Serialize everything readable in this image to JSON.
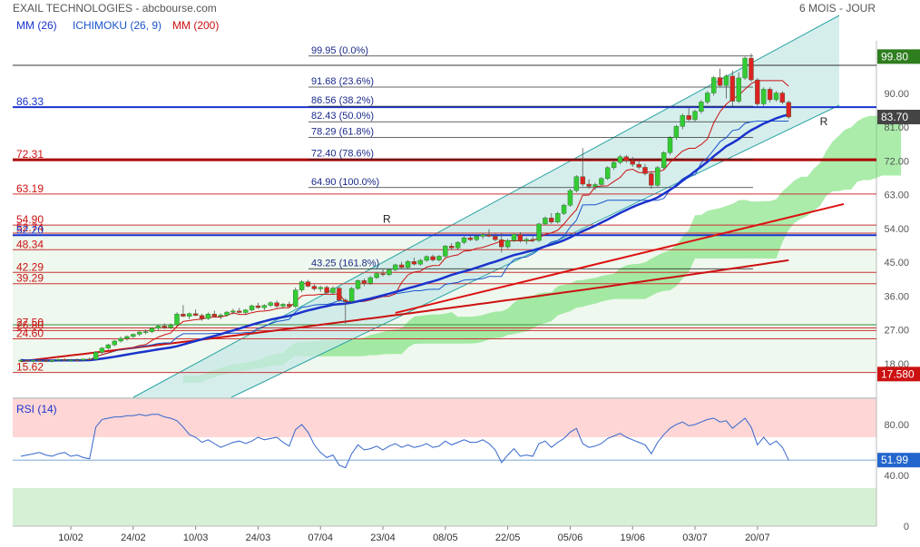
{
  "header": {
    "title": "EXAIL TECHNOLOGIES - abcbourse.com",
    "period": "6 MOIS - JOUR"
  },
  "legend": {
    "mm26": "MM (26)",
    "ichimoku": "ICHIMOKU (26, 9)",
    "mm200": "MM (200)",
    "rsi": "RSI (14)"
  },
  "colors": {
    "candle_up": "#33cc33",
    "candle_down": "#dd2222",
    "mm26": "#1a33cc",
    "mm200": "#cc1111",
    "tenkan": "#cc1111",
    "kijun": "#1a55cc",
    "cloud": "#66dd66",
    "channel": "#2aa3a3",
    "channel_fill": "#c7e8e6",
    "fibo_text": "#1a2a8a",
    "support_text": "#cc1111",
    "rsi_line": "#3366cc",
    "rsi_high": "#ffd6d6",
    "rsi_low": "#d6f0d6",
    "price_badge": "#2e7d1e",
    "last_badge": "#444444",
    "low_badge": "#cc1111",
    "rsi_badge": "#2266cc"
  },
  "chart_data": {
    "type": "candlestick",
    "price_axis": {
      "ylim": [
        9,
        104
      ],
      "ticks": [
        90.0,
        81.0,
        72.0,
        63.0,
        54.0,
        45.0,
        36.0,
        27.0,
        18.0
      ],
      "tick_labels": [
        "90.00",
        "81.00",
        "72.00",
        "63.00",
        "54.00",
        "45.00",
        "36.00",
        "27.00",
        "18.00"
      ]
    },
    "x_axis": {
      "tick_labels": [
        "10/02",
        "24/02",
        "10/03",
        "24/03",
        "07/04",
        "23/04",
        "08/05",
        "22/05",
        "05/06",
        "19/06",
        "03/07",
        "20/07"
      ],
      "tick_index": [
        8,
        18,
        28,
        38,
        48,
        58,
        68,
        78,
        88,
        98,
        108,
        118
      ]
    },
    "badges": {
      "top": "99.80",
      "last": "83.70",
      "low": "17.580",
      "rsi": "51.99"
    },
    "fibonacci": [
      {
        "label": "99.95  (0.0%)",
        "value": 99.95
      },
      {
        "label": "91.68  (23.6%)",
        "value": 91.68
      },
      {
        "label": "86.56  (38.2%)",
        "value": 86.56
      },
      {
        "label": "82.43  (50.0%)",
        "value": 82.43
      },
      {
        "label": "78.29  (61.8%)",
        "value": 78.29
      },
      {
        "label": "72.40  (78.6%)",
        "value": 72.4
      },
      {
        "label": "64.90  (100.0%)",
        "value": 64.9
      },
      {
        "label": "43.25  (161.8%)",
        "value": 43.25
      }
    ],
    "horizontal_levels": [
      {
        "label": "86.33",
        "value": 86.33,
        "kind": "blue"
      },
      {
        "label": "72.31",
        "value": 72.31,
        "kind": "darkred"
      },
      {
        "label": "63.19",
        "value": 63.19,
        "kind": "red"
      },
      {
        "label": "54.90",
        "value": 54.9,
        "kind": "red"
      },
      {
        "label": "52.74",
        "value": 52.74,
        "kind": "red"
      },
      {
        "label": "52.20",
        "value": 52.2,
        "kind": "blue"
      },
      {
        "label": "48.34",
        "value": 48.34,
        "kind": "red"
      },
      {
        "label": "42.29",
        "value": 42.29,
        "kind": "red"
      },
      {
        "label": "39.29",
        "value": 39.29,
        "kind": "red"
      },
      {
        "label": "27.50",
        "value": 27.5,
        "kind": "red"
      },
      {
        "label": "26.80",
        "value": 26.8,
        "kind": "red"
      },
      {
        "label": "24.60",
        "value": 24.6,
        "kind": "red"
      },
      {
        "label": "15.62",
        "value": 15.62,
        "kind": "red"
      }
    ],
    "annotations": [
      {
        "text": "R",
        "index": 58,
        "value": 55.5
      },
      {
        "text": "R",
        "index": 128,
        "value": 81.5
      }
    ],
    "candles": [
      {
        "o": 18.8,
        "h": 19.2,
        "l": 18.4,
        "c": 18.9
      },
      {
        "o": 18.9,
        "h": 19.2,
        "l": 18.5,
        "c": 18.7
      },
      {
        "o": 18.7,
        "h": 19.0,
        "l": 18.3,
        "c": 18.9
      },
      {
        "o": 18.9,
        "h": 19.3,
        "l": 18.6,
        "c": 18.8
      },
      {
        "o": 18.8,
        "h": 19.1,
        "l": 18.4,
        "c": 18.6
      },
      {
        "o": 18.6,
        "h": 19.0,
        "l": 18.3,
        "c": 18.9
      },
      {
        "o": 18.9,
        "h": 19.3,
        "l": 18.6,
        "c": 19.1
      },
      {
        "o": 19.1,
        "h": 19.4,
        "l": 18.7,
        "c": 18.8
      },
      {
        "o": 18.8,
        "h": 19.2,
        "l": 18.5,
        "c": 19.0
      },
      {
        "o": 19.0,
        "h": 19.4,
        "l": 18.7,
        "c": 18.9
      },
      {
        "o": 18.9,
        "h": 19.3,
        "l": 18.6,
        "c": 19.2
      },
      {
        "o": 19.2,
        "h": 19.6,
        "l": 18.9,
        "c": 19.1
      },
      {
        "o": 19.1,
        "h": 21.3,
        "l": 19.0,
        "c": 21.0
      },
      {
        "o": 21.0,
        "h": 22.4,
        "l": 20.6,
        "c": 22.1
      },
      {
        "o": 22.1,
        "h": 23.3,
        "l": 21.7,
        "c": 23.0
      },
      {
        "o": 23.0,
        "h": 24.3,
        "l": 22.6,
        "c": 24.0
      },
      {
        "o": 24.0,
        "h": 25.2,
        "l": 23.6,
        "c": 24.7
      },
      {
        "o": 24.7,
        "h": 25.5,
        "l": 24.1,
        "c": 25.2
      },
      {
        "o": 25.2,
        "h": 26.0,
        "l": 24.8,
        "c": 25.8
      },
      {
        "o": 25.8,
        "h": 26.7,
        "l": 25.3,
        "c": 26.4
      },
      {
        "o": 26.4,
        "h": 27.1,
        "l": 25.8,
        "c": 26.5
      },
      {
        "o": 26.5,
        "h": 27.7,
        "l": 26.1,
        "c": 27.4
      },
      {
        "o": 27.4,
        "h": 28.4,
        "l": 26.9,
        "c": 28.0
      },
      {
        "o": 28.0,
        "h": 28.7,
        "l": 27.2,
        "c": 27.6
      },
      {
        "o": 27.6,
        "h": 28.7,
        "l": 27.2,
        "c": 28.3
      },
      {
        "o": 28.3,
        "h": 31.7,
        "l": 28.0,
        "c": 31.2
      },
      {
        "o": 31.2,
        "h": 33.6,
        "l": 30.4,
        "c": 30.6
      },
      {
        "o": 30.6,
        "h": 31.6,
        "l": 29.8,
        "c": 31.3
      },
      {
        "o": 31.3,
        "h": 32.4,
        "l": 30.6,
        "c": 30.8
      },
      {
        "o": 30.8,
        "h": 31.3,
        "l": 29.4,
        "c": 30.0
      },
      {
        "o": 30.0,
        "h": 31.6,
        "l": 29.6,
        "c": 31.2
      },
      {
        "o": 31.2,
        "h": 32.1,
        "l": 30.3,
        "c": 30.6
      },
      {
        "o": 30.6,
        "h": 31.4,
        "l": 29.8,
        "c": 30.9
      },
      {
        "o": 30.9,
        "h": 32.0,
        "l": 30.5,
        "c": 31.7
      },
      {
        "o": 31.7,
        "h": 32.6,
        "l": 31.1,
        "c": 32.0
      },
      {
        "o": 32.0,
        "h": 32.8,
        "l": 31.4,
        "c": 31.6
      },
      {
        "o": 31.6,
        "h": 32.5,
        "l": 30.9,
        "c": 32.3
      },
      {
        "o": 32.3,
        "h": 33.7,
        "l": 31.9,
        "c": 33.4
      },
      {
        "o": 33.4,
        "h": 34.2,
        "l": 32.6,
        "c": 32.9
      },
      {
        "o": 32.9,
        "h": 33.8,
        "l": 32.2,
        "c": 33.5
      },
      {
        "o": 33.5,
        "h": 34.6,
        "l": 33.1,
        "c": 34.2
      },
      {
        "o": 34.2,
        "h": 34.8,
        "l": 32.8,
        "c": 33.3
      },
      {
        "o": 33.3,
        "h": 34.1,
        "l": 32.6,
        "c": 33.8
      },
      {
        "o": 33.8,
        "h": 34.5,
        "l": 32.9,
        "c": 33.2
      },
      {
        "o": 33.2,
        "h": 38.2,
        "l": 32.8,
        "c": 37.6
      },
      {
        "o": 37.6,
        "h": 40.2,
        "l": 37.0,
        "c": 39.8
      },
      {
        "o": 39.8,
        "h": 40.3,
        "l": 38.3,
        "c": 38.6
      },
      {
        "o": 38.6,
        "h": 39.1,
        "l": 37.4,
        "c": 37.9
      },
      {
        "o": 37.9,
        "h": 38.7,
        "l": 37.1,
        "c": 38.3
      },
      {
        "o": 38.3,
        "h": 38.8,
        "l": 36.6,
        "c": 36.9
      },
      {
        "o": 36.9,
        "h": 38.6,
        "l": 36.3,
        "c": 38.1
      },
      {
        "o": 38.1,
        "h": 38.5,
        "l": 34.3,
        "c": 34.9
      },
      {
        "o": 34.9,
        "h": 35.4,
        "l": 28.6,
        "c": 34.6
      },
      {
        "o": 34.6,
        "h": 38.4,
        "l": 34.1,
        "c": 38.0
      },
      {
        "o": 38.0,
        "h": 40.4,
        "l": 37.6,
        "c": 40.1
      },
      {
        "o": 40.1,
        "h": 40.6,
        "l": 38.6,
        "c": 39.4
      },
      {
        "o": 39.4,
        "h": 41.3,
        "l": 39.0,
        "c": 40.9
      },
      {
        "o": 40.9,
        "h": 42.3,
        "l": 40.6,
        "c": 42.0
      },
      {
        "o": 42.0,
        "h": 43.1,
        "l": 41.2,
        "c": 41.7
      },
      {
        "o": 41.7,
        "h": 43.3,
        "l": 41.3,
        "c": 43.0
      },
      {
        "o": 43.0,
        "h": 44.6,
        "l": 42.6,
        "c": 44.3
      },
      {
        "o": 44.3,
        "h": 45.1,
        "l": 43.2,
        "c": 43.6
      },
      {
        "o": 43.6,
        "h": 45.6,
        "l": 43.3,
        "c": 45.2
      },
      {
        "o": 45.2,
        "h": 46.2,
        "l": 44.1,
        "c": 44.5
      },
      {
        "o": 44.5,
        "h": 45.9,
        "l": 44.1,
        "c": 45.5
      },
      {
        "o": 45.5,
        "h": 46.8,
        "l": 45.1,
        "c": 46.5
      },
      {
        "o": 46.5,
        "h": 47.0,
        "l": 45.2,
        "c": 45.6
      },
      {
        "o": 45.6,
        "h": 46.9,
        "l": 45.2,
        "c": 46.6
      },
      {
        "o": 46.6,
        "h": 49.6,
        "l": 46.3,
        "c": 49.3
      },
      {
        "o": 49.3,
        "h": 50.1,
        "l": 48.4,
        "c": 48.8
      },
      {
        "o": 48.8,
        "h": 50.6,
        "l": 48.4,
        "c": 50.3
      },
      {
        "o": 50.3,
        "h": 51.9,
        "l": 49.8,
        "c": 51.5
      },
      {
        "o": 51.5,
        "h": 52.1,
        "l": 50.6,
        "c": 51.0
      },
      {
        "o": 51.0,
        "h": 52.3,
        "l": 50.6,
        "c": 51.9
      },
      {
        "o": 51.9,
        "h": 52.7,
        "l": 51.2,
        "c": 52.3
      },
      {
        "o": 52.3,
        "h": 53.8,
        "l": 51.7,
        "c": 51.9
      },
      {
        "o": 51.9,
        "h": 52.6,
        "l": 50.6,
        "c": 51.0
      },
      {
        "o": 51.0,
        "h": 52.7,
        "l": 47.6,
        "c": 49.1
      },
      {
        "o": 49.1,
        "h": 51.2,
        "l": 48.6,
        "c": 50.8
      },
      {
        "o": 50.8,
        "h": 52.7,
        "l": 50.4,
        "c": 52.4
      },
      {
        "o": 52.4,
        "h": 53.0,
        "l": 50.2,
        "c": 50.7
      },
      {
        "o": 50.7,
        "h": 51.6,
        "l": 49.8,
        "c": 51.1
      },
      {
        "o": 51.1,
        "h": 51.9,
        "l": 50.3,
        "c": 50.8
      },
      {
        "o": 50.8,
        "h": 55.5,
        "l": 50.4,
        "c": 55.2
      },
      {
        "o": 55.2,
        "h": 57.2,
        "l": 54.8,
        "c": 56.8
      },
      {
        "o": 56.8,
        "h": 58.1,
        "l": 55.2,
        "c": 55.7
      },
      {
        "o": 55.7,
        "h": 58.4,
        "l": 55.3,
        "c": 58.0
      },
      {
        "o": 58.0,
        "h": 60.6,
        "l": 57.6,
        "c": 60.2
      },
      {
        "o": 60.2,
        "h": 64.6,
        "l": 59.8,
        "c": 64.1
      },
      {
        "o": 64.1,
        "h": 68.2,
        "l": 63.6,
        "c": 67.8
      },
      {
        "o": 67.8,
        "h": 75.4,
        "l": 65.2,
        "c": 65.8
      },
      {
        "o": 65.8,
        "h": 67.1,
        "l": 64.6,
        "c": 65.2
      },
      {
        "o": 65.2,
        "h": 66.2,
        "l": 64.2,
        "c": 65.7
      },
      {
        "o": 65.7,
        "h": 67.7,
        "l": 65.3,
        "c": 67.3
      },
      {
        "o": 67.3,
        "h": 70.6,
        "l": 66.9,
        "c": 70.2
      },
      {
        "o": 70.2,
        "h": 72.1,
        "l": 69.6,
        "c": 71.6
      },
      {
        "o": 71.6,
        "h": 73.6,
        "l": 71.1,
        "c": 73.1
      },
      {
        "o": 73.1,
        "h": 73.6,
        "l": 71.5,
        "c": 72.0
      },
      {
        "o": 72.0,
        "h": 73.1,
        "l": 70.4,
        "c": 71.1
      },
      {
        "o": 71.1,
        "h": 72.1,
        "l": 69.8,
        "c": 70.3
      },
      {
        "o": 70.3,
        "h": 71.2,
        "l": 68.1,
        "c": 68.6
      },
      {
        "o": 68.6,
        "h": 69.2,
        "l": 64.6,
        "c": 65.5
      },
      {
        "o": 65.5,
        "h": 70.6,
        "l": 65.1,
        "c": 70.2
      },
      {
        "o": 70.2,
        "h": 74.6,
        "l": 69.7,
        "c": 74.2
      },
      {
        "o": 74.2,
        "h": 78.6,
        "l": 73.6,
        "c": 78.2
      },
      {
        "o": 78.2,
        "h": 81.6,
        "l": 77.6,
        "c": 81.2
      },
      {
        "o": 81.2,
        "h": 84.6,
        "l": 80.4,
        "c": 84.1
      },
      {
        "o": 84.1,
        "h": 86.1,
        "l": 82.6,
        "c": 83.0
      },
      {
        "o": 83.0,
        "h": 85.6,
        "l": 82.4,
        "c": 85.2
      },
      {
        "o": 85.2,
        "h": 88.2,
        "l": 84.6,
        "c": 87.7
      },
      {
        "o": 87.7,
        "h": 90.6,
        "l": 87.1,
        "c": 90.1
      },
      {
        "o": 90.1,
        "h": 94.6,
        "l": 89.4,
        "c": 94.2
      },
      {
        "o": 94.2,
        "h": 96.6,
        "l": 91.6,
        "c": 92.1
      },
      {
        "o": 92.1,
        "h": 95.1,
        "l": 88.6,
        "c": 94.6
      },
      {
        "o": 94.6,
        "h": 96.1,
        "l": 86.6,
        "c": 87.9
      },
      {
        "o": 87.9,
        "h": 95.6,
        "l": 87.4,
        "c": 94.1
      },
      {
        "o": 94.1,
        "h": 99.8,
        "l": 93.6,
        "c": 99.4
      },
      {
        "o": 99.4,
        "h": 100.6,
        "l": 93.1,
        "c": 93.6
      },
      {
        "o": 93.6,
        "h": 94.1,
        "l": 86.2,
        "c": 87.2
      },
      {
        "o": 87.2,
        "h": 91.6,
        "l": 86.6,
        "c": 91.1
      },
      {
        "o": 91.1,
        "h": 91.6,
        "l": 87.6,
        "c": 88.3
      },
      {
        "o": 88.3,
        "h": 90.6,
        "l": 87.8,
        "c": 90.1
      },
      {
        "o": 90.1,
        "h": 90.6,
        "l": 87.1,
        "c": 87.6
      },
      {
        "o": 87.6,
        "h": 88.1,
        "l": 83.2,
        "c": 83.7
      }
    ],
    "rsi": {
      "ylim": [
        0,
        100
      ],
      "ticks": [
        80.0,
        40.0,
        0.0
      ],
      "tick_labels": [
        "80.00",
        "40.00",
        "0"
      ],
      "zones": [
        70,
        30
      ],
      "values": [
        55,
        56,
        57,
        58,
        56,
        55,
        57,
        58,
        55,
        56,
        54,
        53,
        78,
        84,
        85,
        86,
        86,
        87,
        87,
        88,
        87,
        88,
        88,
        86,
        85,
        83,
        78,
        72,
        70,
        66,
        68,
        65,
        62,
        64,
        66,
        67,
        65,
        67,
        70,
        68,
        69,
        70,
        66,
        63,
        76,
        80,
        74,
        64,
        58,
        54,
        56,
        48,
        46,
        57,
        64,
        60,
        61,
        63,
        60,
        63,
        65,
        62,
        64,
        62,
        63,
        65,
        62,
        63,
        67,
        64,
        66,
        68,
        66,
        66,
        68,
        65,
        60,
        50,
        56,
        61,
        55,
        56,
        55,
        65,
        67,
        62,
        66,
        69,
        74,
        77,
        65,
        62,
        63,
        65,
        69,
        71,
        73,
        70,
        68,
        66,
        64,
        57,
        66,
        72,
        77,
        80,
        82,
        79,
        80,
        82,
        84,
        85,
        82,
        83,
        77,
        81,
        85,
        78,
        64,
        70,
        64,
        67,
        62,
        52
      ]
    }
  }
}
